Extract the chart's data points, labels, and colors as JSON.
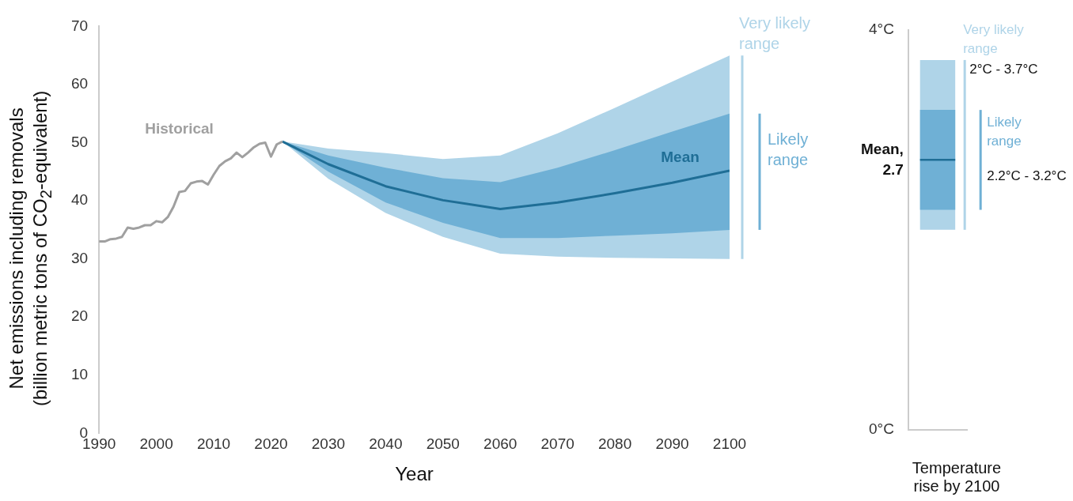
{
  "chart_data": [
    {
      "type": "line",
      "xlabel": "Year",
      "ylabel": "Net emissions including removals (billion metric tons of CO$_{2}$-equivalent)",
      "xlim": [
        1990,
        2100
      ],
      "xticks": [
        1990,
        2000,
        2010,
        2020,
        2030,
        2040,
        2050,
        2060,
        2070,
        2080,
        2090,
        2100
      ],
      "ylim": [
        0,
        70
      ],
      "yticks": [
        0,
        10,
        20,
        30,
        40,
        50,
        60,
        70
      ],
      "marker": "none",
      "series": [
        {
          "name": "Historical",
          "type": "line",
          "color": "#a0a0a0",
          "x": [
            1990,
            1991,
            1992,
            1993,
            1994,
            1995,
            1996,
            1997,
            1998,
            1999,
            2000,
            2001,
            2002,
            2003,
            2004,
            2005,
            2006,
            2007,
            2008,
            2009,
            2010,
            2011,
            2012,
            2013,
            2014,
            2015,
            2016,
            2017,
            2018,
            2019,
            2020,
            2021,
            2022
          ],
          "values": [
            33,
            33,
            33.4,
            33.5,
            33.8,
            35.4,
            35.2,
            35.4,
            35.8,
            35.8,
            36.5,
            36.3,
            37.2,
            39,
            41.5,
            41.7,
            43,
            43.3,
            43.4,
            42.8,
            44.5,
            46,
            46.8,
            47.3,
            48.3,
            47.5,
            48.3,
            49.2,
            49.8,
            50,
            47.6,
            49.7,
            50.2
          ]
        },
        {
          "name": "Very likely range",
          "type": "line",
          "color": "#afd4e8",
          "x": [
            2022,
            2030,
            2040,
            2050,
            2060,
            2070,
            2080,
            2090,
            2100
          ],
          "values": [
            null,
            null,
            null,
            null,
            null,
            null,
            null,
            null,
            null
          ],
          "lower": [
            50.2,
            43.8,
            37.9,
            33.8,
            30.9,
            30.4,
            30.2,
            30.1,
            30
          ],
          "upper": [
            50.2,
            49,
            48.2,
            47.2,
            47.8,
            51.6,
            56,
            60.5,
            65
          ]
        },
        {
          "name": "Likely range",
          "type": "line",
          "color": "#6fb0d5",
          "x": [
            2022,
            2030,
            2040,
            2050,
            2060,
            2070,
            2080,
            2090,
            2100
          ],
          "values": [
            null,
            null,
            null,
            null,
            null,
            null,
            null,
            null,
            null
          ],
          "lower": [
            50.2,
            45,
            39.7,
            36.2,
            33.6,
            33.6,
            34,
            34.4,
            35
          ],
          "upper": [
            50.2,
            47.8,
            45.7,
            43.9,
            43.2,
            45.7,
            48.7,
            51.9,
            55
          ]
        },
        {
          "name": "Mean",
          "type": "line",
          "color": "#1f6e96",
          "x": [
            2022,
            2030,
            2040,
            2050,
            2060,
            2070,
            2080,
            2090,
            2100
          ],
          "values": [
            50.2,
            46.3,
            42.5,
            40.1,
            38.6,
            39.7,
            41.3,
            43.1,
            45.2
          ]
        }
      ]
    },
    {
      "type": "bar",
      "xlabel": "Temperature rise by 2100",
      "categories": [
        null
      ],
      "ylim": [
        0,
        4
      ],
      "yticks": [
        {
          "value": 0,
          "label": "0°C"
        },
        {
          "value": 4,
          "label": "4°C"
        }
      ],
      "series": [
        {
          "name": "Very likely range",
          "color": "#afd4e8",
          "base": [
            2
          ],
          "values": [
            1.7
          ]
        },
        {
          "name": "Likely range",
          "color": "#6fb0d5",
          "base": [
            2.2
          ],
          "values": [
            1
          ]
        }
      ],
      "annotations": [
        "2°C - 3.7°C",
        "2.2°C - 3.2°C"
      ],
      "ref_lines": [
        {
          "axis": "y",
          "value": 2.7,
          "label": "Mean, 2.7",
          "color": "#1f6e96"
        }
      ]
    }
  ]
}
